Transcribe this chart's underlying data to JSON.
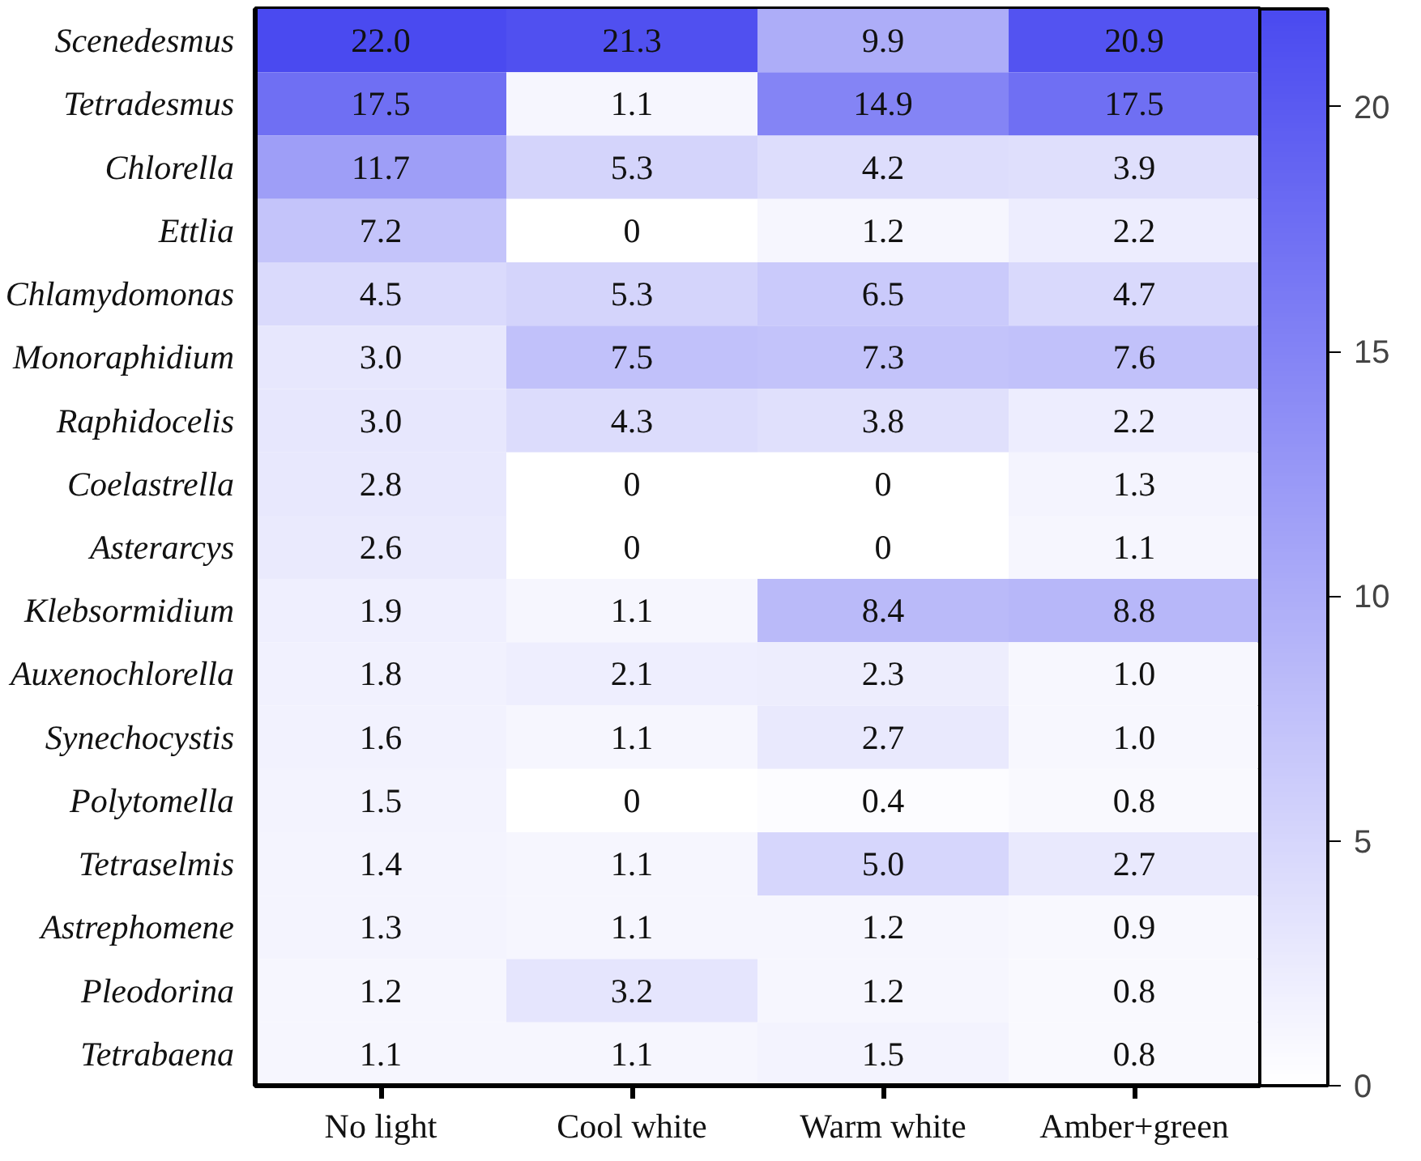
{
  "chart_data": {
    "type": "heatmap",
    "categories": [
      "No light",
      "Cool white",
      "Warm white",
      "Amber+green"
    ],
    "y_categories": [
      "Scenedesmus",
      "Tetradesmus",
      "Chlorella",
      "Ettlia",
      "Chlamydomonas",
      "Monoraphidium",
      "Raphidocelis",
      "Coelastrella",
      "Asterarcys",
      "Klebsormidium",
      "Auxenochlorella",
      "Synechocystis",
      "Polytomella",
      "Tetraselmis",
      "Astrephomene",
      "Pleodorina",
      "Tetrabaena"
    ],
    "cells": [
      [
        22.0,
        21.3,
        9.9,
        20.9
      ],
      [
        17.5,
        1.1,
        14.9,
        17.5
      ],
      [
        11.7,
        5.3,
        4.2,
        3.9
      ],
      [
        7.2,
        0,
        1.2,
        2.2
      ],
      [
        4.5,
        5.3,
        6.5,
        4.7
      ],
      [
        3.0,
        7.5,
        7.3,
        7.6
      ],
      [
        3.0,
        4.3,
        3.8,
        2.2
      ],
      [
        2.8,
        0,
        0,
        1.3
      ],
      [
        2.6,
        0,
        0,
        1.1
      ],
      [
        1.9,
        1.1,
        8.4,
        8.8
      ],
      [
        1.8,
        2.1,
        2.3,
        1.0
      ],
      [
        1.6,
        1.1,
        2.7,
        1.0
      ],
      [
        1.5,
        0,
        0.4,
        0.8
      ],
      [
        1.4,
        1.1,
        5.0,
        2.7
      ],
      [
        1.3,
        1.1,
        1.2,
        0.9
      ],
      [
        1.2,
        3.2,
        1.2,
        0.8
      ],
      [
        1.1,
        1.1,
        1.5,
        0.8
      ]
    ],
    "cell_labels": [
      [
        "22.0",
        "21.3",
        "9.9",
        "20.9"
      ],
      [
        "17.5",
        "1.1",
        "14.9",
        "17.5"
      ],
      [
        "11.7",
        "5.3",
        "4.2",
        "3.9"
      ],
      [
        "7.2",
        "0",
        "1.2",
        "2.2"
      ],
      [
        "4.5",
        "5.3",
        "6.5",
        "4.7"
      ],
      [
        "3.0",
        "7.5",
        "7.3",
        "7.6"
      ],
      [
        "3.0",
        "4.3",
        "3.8",
        "2.2"
      ],
      [
        "2.8",
        "0",
        "0",
        "1.3"
      ],
      [
        "2.6",
        "0",
        "0",
        "1.1"
      ],
      [
        "1.9",
        "1.1",
        "8.4",
        "8.8"
      ],
      [
        "1.8",
        "2.1",
        "2.3",
        "1.0"
      ],
      [
        "1.6",
        "1.1",
        "2.7",
        "1.0"
      ],
      [
        "1.5",
        "0",
        "0.4",
        "0.8"
      ],
      [
        "1.4",
        "1.1",
        "5.0",
        "2.7"
      ],
      [
        "1.3",
        "1.1",
        "1.2",
        "0.9"
      ],
      [
        "1.2",
        "3.2",
        "1.2",
        "0.8"
      ],
      [
        "1.1",
        "1.1",
        "1.5",
        "0.8"
      ]
    ],
    "clim": [
      0,
      22
    ],
    "cticks": [
      0,
      5,
      10,
      15,
      20
    ]
  }
}
